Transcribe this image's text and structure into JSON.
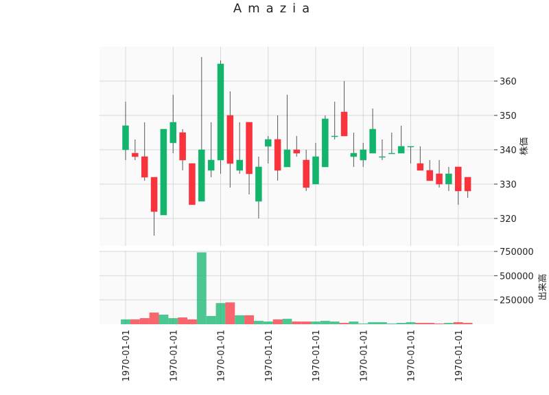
{
  "chart_data": {
    "type": "candlestick",
    "title": "Amazia",
    "ylabel": "株価",
    "categories": [
      "1970-01-01",
      null,
      null,
      null,
      null,
      "1970-01-01",
      null,
      null,
      null,
      null,
      "1970-01-01",
      null,
      null,
      null,
      null,
      "1970-01-01",
      null,
      null,
      null,
      null,
      "1970-01-01",
      null,
      null,
      null,
      null,
      "1970-01-01",
      null,
      null,
      null,
      null,
      "1970-01-01",
      null,
      null,
      null,
      null,
      "1970-01-01",
      null
    ],
    "open": [
      340,
      339,
      338,
      332,
      321,
      342,
      345,
      336,
      325,
      334,
      337,
      350,
      334,
      348,
      325,
      341,
      343,
      335,
      340,
      337,
      330,
      335,
      344,
      351,
      338,
      337,
      339,
      338,
      339,
      339,
      341,
      336,
      334,
      333,
      330,
      335,
      332
    ],
    "high": [
      354,
      343,
      348,
      332,
      346,
      356,
      346,
      336,
      367,
      348,
      366,
      357,
      348,
      348,
      338,
      344,
      350,
      356,
      344,
      340,
      342,
      350,
      354,
      360,
      345,
      342,
      352,
      343,
      345,
      347,
      341,
      341,
      337,
      337,
      335,
      335,
      332
    ],
    "low": [
      337,
      337,
      331,
      315,
      321,
      339,
      334,
      324,
      325,
      332,
      333,
      329,
      333,
      327,
      320,
      336,
      331,
      335,
      338,
      328,
      330,
      335,
      343,
      344,
      335,
      335,
      339,
      337,
      339,
      339,
      336,
      334,
      331,
      329,
      328,
      324,
      326
    ],
    "close": [
      347,
      338,
      332,
      322,
      346,
      348,
      337,
      324,
      340,
      337,
      365,
      336,
      337,
      333,
      335,
      343,
      334,
      340,
      339,
      329,
      338,
      349,
      344,
      344,
      339,
      340,
      346,
      338,
      339,
      341,
      341,
      334,
      331,
      330,
      333,
      328,
      328
    ],
    "ylim": [
      312,
      370
    ],
    "yticks": [
      320,
      330,
      340,
      350,
      360
    ],
    "grid": true,
    "up_color": "#13b56d",
    "down_color": "#f8333c",
    "volume": {
      "ylabel": "出来高",
      "values": [
        50000,
        50000,
        63000,
        120000,
        99000,
        63000,
        70000,
        50000,
        740000,
        85000,
        218000,
        225000,
        92000,
        92000,
        35000,
        28000,
        50000,
        56000,
        28000,
        28000,
        28000,
        35000,
        28000,
        14000,
        28000,
        7000,
        21000,
        21000,
        7000,
        14000,
        21000,
        14000,
        14000,
        7000,
        14000,
        21000,
        14000
      ],
      "ylim": [
        0,
        757000
      ],
      "yticks": [
        250000,
        500000,
        750000
      ]
    }
  }
}
